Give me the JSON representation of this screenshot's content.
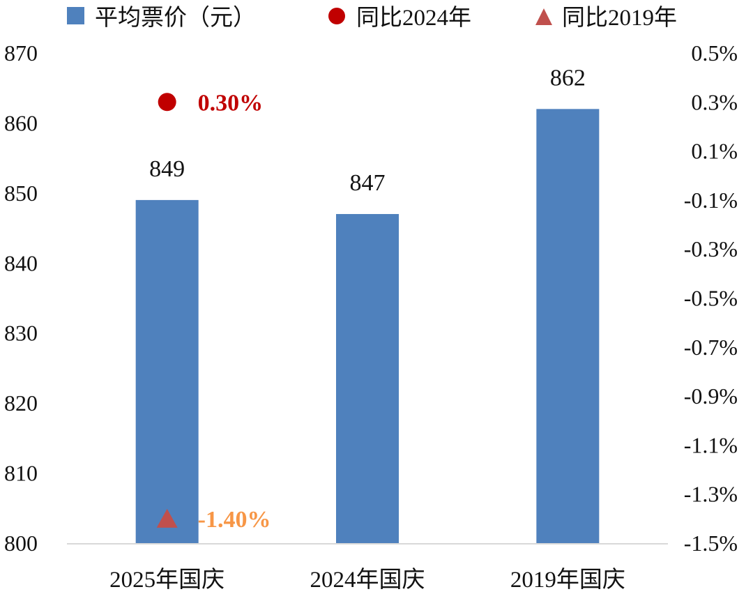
{
  "chart_data": {
    "type": "bar",
    "categories": [
      "2025年国庆",
      "2024年国庆",
      "2019年国庆"
    ],
    "series": [
      {
        "name": "平均票价（元）",
        "type": "bar",
        "axis": "left",
        "values": [
          849,
          847,
          862
        ],
        "labels": [
          "849",
          "847",
          "862"
        ],
        "color": "#4F81BD"
      },
      {
        "name": "同比2024年",
        "type": "scatter",
        "axis": "right",
        "marker": "circle",
        "color": "#C00000",
        "points": [
          {
            "category": "2025年国庆",
            "value": 0.3,
            "label": "0.30%"
          }
        ],
        "label_color": "#C00000"
      },
      {
        "name": "同比2019年",
        "type": "scatter",
        "axis": "right",
        "marker": "triangle",
        "color": "#C0504D",
        "points": [
          {
            "category": "2025年国庆",
            "value": -1.4,
            "label": "-1.40%"
          }
        ],
        "label_color": "#F79646"
      }
    ],
    "left_axis": {
      "ylim": [
        800,
        870
      ],
      "ticks": [
        "800",
        "810",
        "820",
        "830",
        "840",
        "850",
        "860",
        "870"
      ]
    },
    "right_axis": {
      "ylim": [
        -1.5,
        0.5
      ],
      "ticks": [
        "-1.5%",
        "-1.3%",
        "-1.1%",
        "-0.9%",
        "-0.7%",
        "-0.5%",
        "-0.3%",
        "-0.1%",
        "0.1%",
        "0.3%",
        "0.5%"
      ]
    },
    "legend": "top",
    "grid": false,
    "axis_color": "#D9D9D9"
  }
}
